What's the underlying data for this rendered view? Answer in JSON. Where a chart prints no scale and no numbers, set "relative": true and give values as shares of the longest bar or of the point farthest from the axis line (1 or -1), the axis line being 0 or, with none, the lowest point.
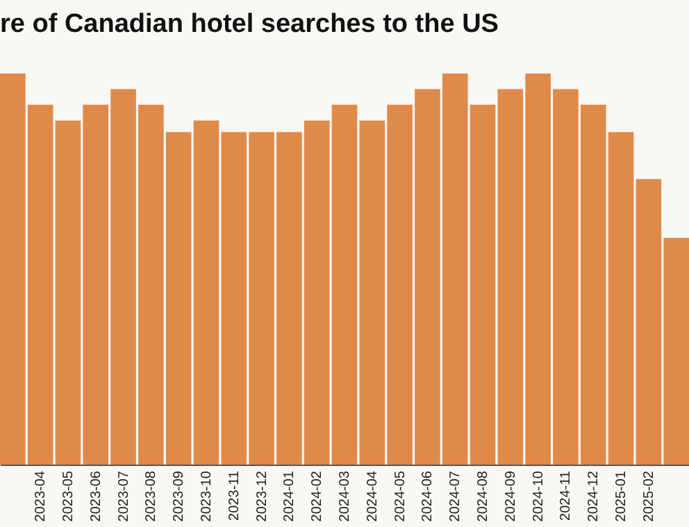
{
  "chart_data": {
    "type": "bar",
    "title": "re of Canadian hotel searches to the US",
    "relative": true,
    "color": "#e08a4a",
    "categories": [
      null,
      "2023-04",
      "2023-05",
      "2023-06",
      "2023-07",
      "2023-08",
      "2023-09",
      "2023-10",
      "2023-11",
      "2023-12",
      "2024-01",
      "2024-02",
      "2024-03",
      "2024-04",
      "2024-05",
      "2024-06",
      "2024-07",
      "2024-08",
      "2024-09",
      "2024-10",
      "2024-11",
      "2024-12",
      "2025-01",
      "2025-02",
      null
    ],
    "values": [
      1,
      0.92,
      0.88,
      0.92,
      0.96,
      0.92,
      0.85,
      0.88,
      0.85,
      0.85,
      0.85,
      0.88,
      0.92,
      0.88,
      0.92,
      0.96,
      1,
      0.92,
      0.96,
      1,
      0.96,
      0.92,
      0.85,
      0.73,
      0.58
    ]
  }
}
